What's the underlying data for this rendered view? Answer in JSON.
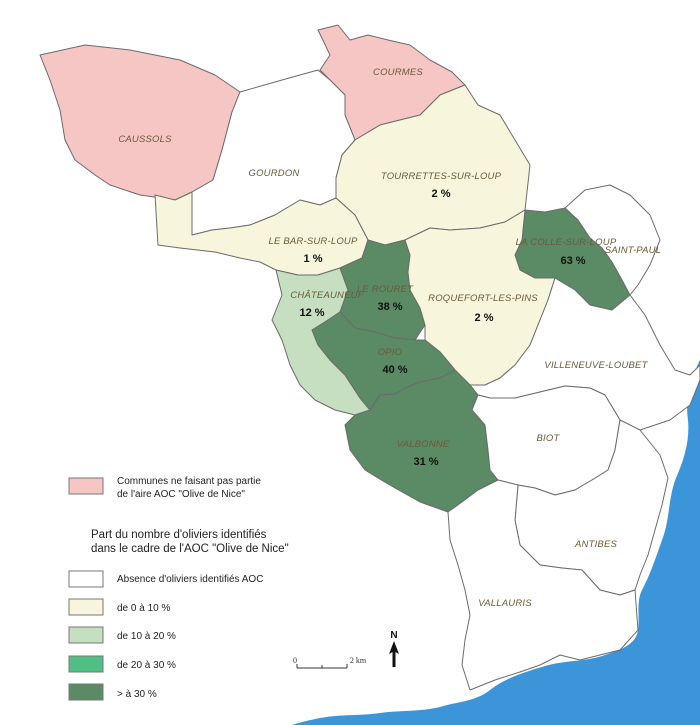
{
  "colors": {
    "excluded": "#f6c6c4",
    "none": "#ffffff",
    "c0_10": "#f7f6dc",
    "c10_20": "#c5dfc0",
    "c20_30": "#4fbf84",
    "c30plus": "#5a8b64",
    "sea": "#3c95d8",
    "border": "#6b6b6b"
  },
  "communes": [
    {
      "name": "CAUSSOLS",
      "category": "excluded",
      "pct": ""
    },
    {
      "name": "COURMES",
      "category": "excluded",
      "pct": ""
    },
    {
      "name": "GOURDON",
      "category": "none",
      "pct": ""
    },
    {
      "name": "TOURRETTES-SUR-LOUP",
      "category": "c0_10",
      "pct": "2 %"
    },
    {
      "name": "LE BAR-SUR-LOUP",
      "category": "c0_10",
      "pct": "1 %"
    },
    {
      "name": "LA COLLE-SUR-LOUP",
      "category": "c30plus",
      "pct": "63 %"
    },
    {
      "name": "SAINT-PAUL",
      "category": "none",
      "pct": ""
    },
    {
      "name": "CHÂTEAUNEUF",
      "category": "c10_20",
      "pct": "12 %"
    },
    {
      "name": "LE ROURET",
      "category": "c30plus",
      "pct": "38 %"
    },
    {
      "name": "ROQUEFORT-LES-PINS",
      "category": "c0_10",
      "pct": "2 %"
    },
    {
      "name": "OPIO",
      "category": "c30plus",
      "pct": "40 %"
    },
    {
      "name": "VILLENEUVE-LOUBET",
      "category": "none",
      "pct": ""
    },
    {
      "name": "VALBONNE",
      "category": "c30plus",
      "pct": "31 %"
    },
    {
      "name": "BIOT",
      "category": "none",
      "pct": ""
    },
    {
      "name": "ANTIBES",
      "category": "none",
      "pct": ""
    },
    {
      "name": "VALLAURIS",
      "category": "none",
      "pct": ""
    }
  ],
  "legend": {
    "excluded_label": "Communes ne faisant pas partie de l'aire AOC \"Olive de Nice\"",
    "excluded_line1": "Communes ne faisant pas partie",
    "excluded_line2": "de l'aire AOC \"Olive de Nice\"",
    "title_line1": "Part du nombre d'oliviers identifiés",
    "title_line2": "dans le cadre de l'AOC \"Olive de Nice\"",
    "items": [
      {
        "label": "Absence d'oliviers identifiés AOC",
        "category": "none"
      },
      {
        "label": "de 0 à 10 %",
        "category": "c0_10"
      },
      {
        "label": "de 10 à 20 %",
        "category": "c10_20"
      },
      {
        "label": "de 20 à 30 %",
        "category": "c20_30"
      },
      {
        "label": "> à 30 %",
        "category": "c30plus"
      }
    ]
  },
  "scale": {
    "start": "0",
    "end": "2 km"
  },
  "north": "N"
}
